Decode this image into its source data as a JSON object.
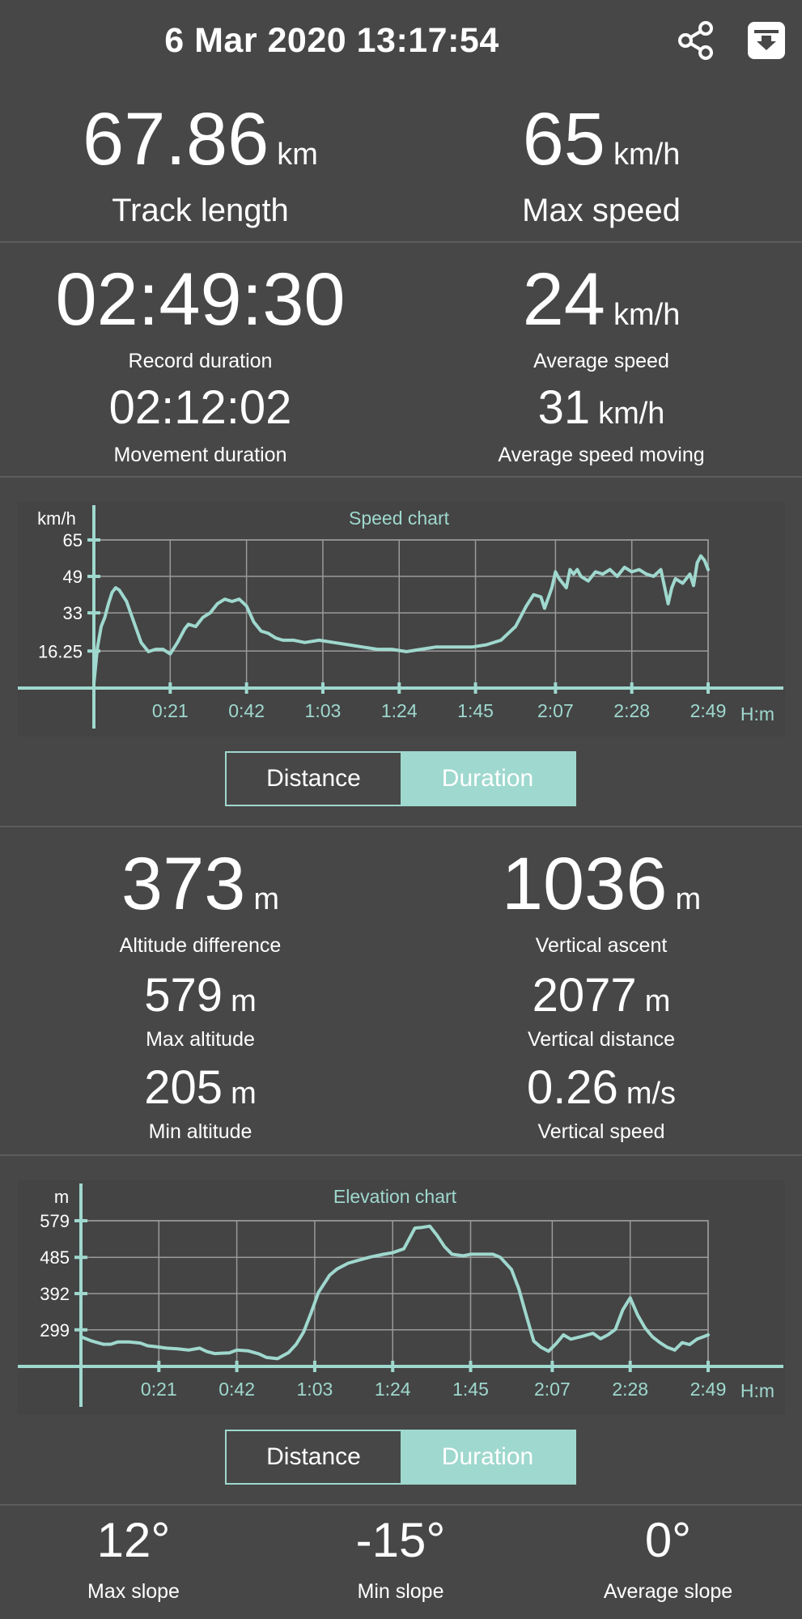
{
  "header": {
    "datetime": "6 Mar 2020 13:17:54"
  },
  "stats": {
    "track_length": {
      "value": "67.86",
      "unit": "km",
      "label": "Track length"
    },
    "max_speed": {
      "value": "65",
      "unit": "km/h",
      "label": "Max speed"
    },
    "record_duration": {
      "value": "02:49:30",
      "label": "Record duration"
    },
    "movement_duration": {
      "value": "02:12:02",
      "label": "Movement duration"
    },
    "average_speed": {
      "value": "24",
      "unit": "km/h",
      "label": "Average speed"
    },
    "average_speed_moving": {
      "value": "31",
      "unit": "km/h",
      "label": "Average speed moving"
    },
    "altitude_difference": {
      "value": "373",
      "unit": "m",
      "label": "Altitude difference"
    },
    "max_altitude": {
      "value": "579",
      "unit": "m",
      "label": "Max altitude"
    },
    "min_altitude": {
      "value": "205",
      "unit": "m",
      "label": "Min altitude"
    },
    "vertical_ascent": {
      "value": "1036",
      "unit": "m",
      "label": "Vertical ascent"
    },
    "vertical_distance": {
      "value": "2077",
      "unit": "m",
      "label": "Vertical distance"
    },
    "vertical_speed": {
      "value": "0.26",
      "unit": "m/s",
      "label": "Vertical speed"
    },
    "max_slope": {
      "value": "12°",
      "label": "Max slope"
    },
    "min_slope": {
      "value": "-15°",
      "label": "Min slope"
    },
    "average_slope": {
      "value": "0°",
      "label": "Average slope"
    }
  },
  "toggles": {
    "speed": {
      "distance": "Distance",
      "duration": "Duration",
      "selected": "Duration"
    },
    "elevation": {
      "distance": "Distance",
      "duration": "Duration",
      "selected": "Duration"
    }
  },
  "icons": {
    "share": "share-icon",
    "save": "download-box-icon"
  },
  "colors": {
    "background": "#474747",
    "accent": "#9fd8ce",
    "grid": "#9a9a9a",
    "text": "#ffffff"
  },
  "chart_data": [
    {
      "type": "line",
      "title": "Speed chart",
      "ylabel": "km/h",
      "xlabel": "H:m",
      "x_tick_labels": [
        "0:21",
        "0:42",
        "1:03",
        "1:24",
        "1:45",
        "2:07",
        "2:28",
        "2:49"
      ],
      "y_tick_labels": [
        "16.25",
        "33",
        "49",
        "65"
      ],
      "x_ticks": [
        21,
        42,
        63,
        84,
        105,
        127,
        148,
        169
      ],
      "y_ticks": [
        16.25,
        33,
        49,
        65
      ],
      "xlim": [
        0,
        169
      ],
      "ylim": [
        0,
        65
      ],
      "grid": true,
      "series": [
        {
          "x": [
            0,
            1,
            2,
            3,
            4,
            5,
            6,
            7,
            9,
            11,
            13,
            15,
            17,
            19,
            21,
            23,
            25,
            26,
            28,
            30,
            32,
            34,
            36,
            38,
            40,
            42,
            44,
            46,
            48,
            50,
            52,
            55,
            58,
            62,
            66,
            70,
            74,
            78,
            82,
            86,
            90,
            94,
            97,
            100,
            104,
            108,
            112,
            116,
            119,
            121,
            123,
            124,
            126,
            127,
            128,
            130,
            131,
            132,
            133,
            134,
            136,
            138,
            140,
            142,
            144,
            146,
            148,
            150,
            152,
            154,
            156,
            158,
            159,
            160,
            162,
            164,
            165,
            166,
            167,
            168,
            169
          ],
          "y": [
            2,
            18,
            27,
            31,
            37,
            42,
            44,
            43,
            38,
            29,
            20,
            16,
            17,
            17,
            15,
            20,
            26,
            28,
            27,
            31,
            33,
            37,
            39,
            38,
            39,
            36,
            29,
            25,
            24,
            22,
            21,
            21,
            20,
            21,
            20,
            19,
            18,
            17,
            17,
            16,
            17,
            18,
            18,
            18,
            18,
            19,
            21,
            27,
            36,
            41,
            40,
            35,
            44,
            51,
            48,
            44,
            52,
            50,
            52,
            49,
            47,
            51,
            50,
            52,
            49,
            53,
            51,
            52,
            50,
            49,
            52,
            37,
            44,
            48,
            46,
            50,
            45,
            55,
            58,
            56,
            52
          ]
        }
      ]
    },
    {
      "type": "line",
      "title": "Elevation chart",
      "ylabel": "m",
      "xlabel": "H:m",
      "x_tick_labels": [
        "0:21",
        "0:42",
        "1:03",
        "1:24",
        "1:45",
        "2:07",
        "2:28",
        "2:49"
      ],
      "y_tick_labels": [
        "299",
        "392",
        "485",
        "579"
      ],
      "x_ticks": [
        21,
        42,
        63,
        84,
        105,
        127,
        148,
        169
      ],
      "y_ticks": [
        299,
        392,
        485,
        579
      ],
      "xlim": [
        0,
        169
      ],
      "ylim": [
        205,
        579
      ],
      "grid": true,
      "series": [
        {
          "x": [
            0,
            3,
            6,
            8,
            10,
            13,
            16,
            18,
            20,
            23,
            26,
            29,
            32,
            34,
            36,
            38,
            40,
            42,
            45,
            48,
            50,
            53,
            56,
            58,
            60,
            62,
            64,
            67,
            69,
            72,
            75,
            78,
            81,
            84,
            87,
            90,
            92,
            94,
            96,
            98,
            100,
            103,
            105,
            107,
            109,
            111,
            113,
            116,
            118,
            120,
            122,
            124,
            126,
            128,
            130,
            132,
            135,
            138,
            140,
            142,
            144,
            146,
            148,
            150,
            152,
            154,
            156,
            158,
            160,
            162,
            164,
            166,
            168,
            169
          ],
          "y": [
            281,
            270,
            262,
            262,
            268,
            268,
            265,
            258,
            256,
            252,
            250,
            247,
            252,
            243,
            238,
            239,
            240,
            247,
            245,
            237,
            228,
            225,
            241,
            262,
            293,
            342,
            395,
            439,
            455,
            470,
            478,
            486,
            492,
            497,
            507,
            560,
            562,
            565,
            541,
            512,
            493,
            489,
            493,
            493,
            493,
            493,
            485,
            454,
            404,
            336,
            270,
            254,
            244,
            263,
            286,
            275,
            282,
            290,
            276,
            286,
            300,
            350,
            381,
            337,
            304,
            281,
            266,
            254,
            247,
            266,
            261,
            275,
            282,
            286
          ]
        }
      ]
    }
  ]
}
